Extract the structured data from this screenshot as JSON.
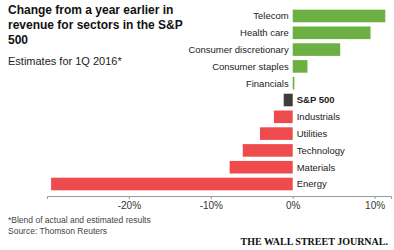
{
  "chart_data": {
    "type": "bar",
    "orientation": "horizontal",
    "title": "Change from a year earlier in revenue for sectors in the S&P 500",
    "subtitle": "Estimates for 1Q 2016*",
    "categories": [
      "Telecom",
      "Health care",
      "Consumer discretionary",
      "Consumer staples",
      "Financials",
      "S&P 500",
      "Industrials",
      "Utilities",
      "Technology",
      "Materials",
      "Energy"
    ],
    "values": [
      11.3,
      9.5,
      5.8,
      1.8,
      0.2,
      -1.1,
      -2.3,
      -4.0,
      -6.1,
      -7.7,
      -29.5
    ],
    "colors": [
      "#6cb043",
      "#6cb043",
      "#6cb043",
      "#6cb043",
      "#6cb043",
      "#3d3d3d",
      "#ee4b4f",
      "#ee4b4f",
      "#ee4b4f",
      "#ee4b4f",
      "#ee4b4f"
    ],
    "xlim": [
      -30,
      12
    ],
    "xticks": [
      {
        "value": -20,
        "label": "-20%"
      },
      {
        "value": -10,
        "label": "-10%"
      },
      {
        "value": 0,
        "label": "0%"
      },
      {
        "value": 10,
        "label": "10%"
      }
    ],
    "grid": false,
    "data_labels": false,
    "footnote": "*Blend of actual and estimated results",
    "source": "Source: Thomson Reuters",
    "credit": "THE WALL STREET JOURNAL."
  }
}
